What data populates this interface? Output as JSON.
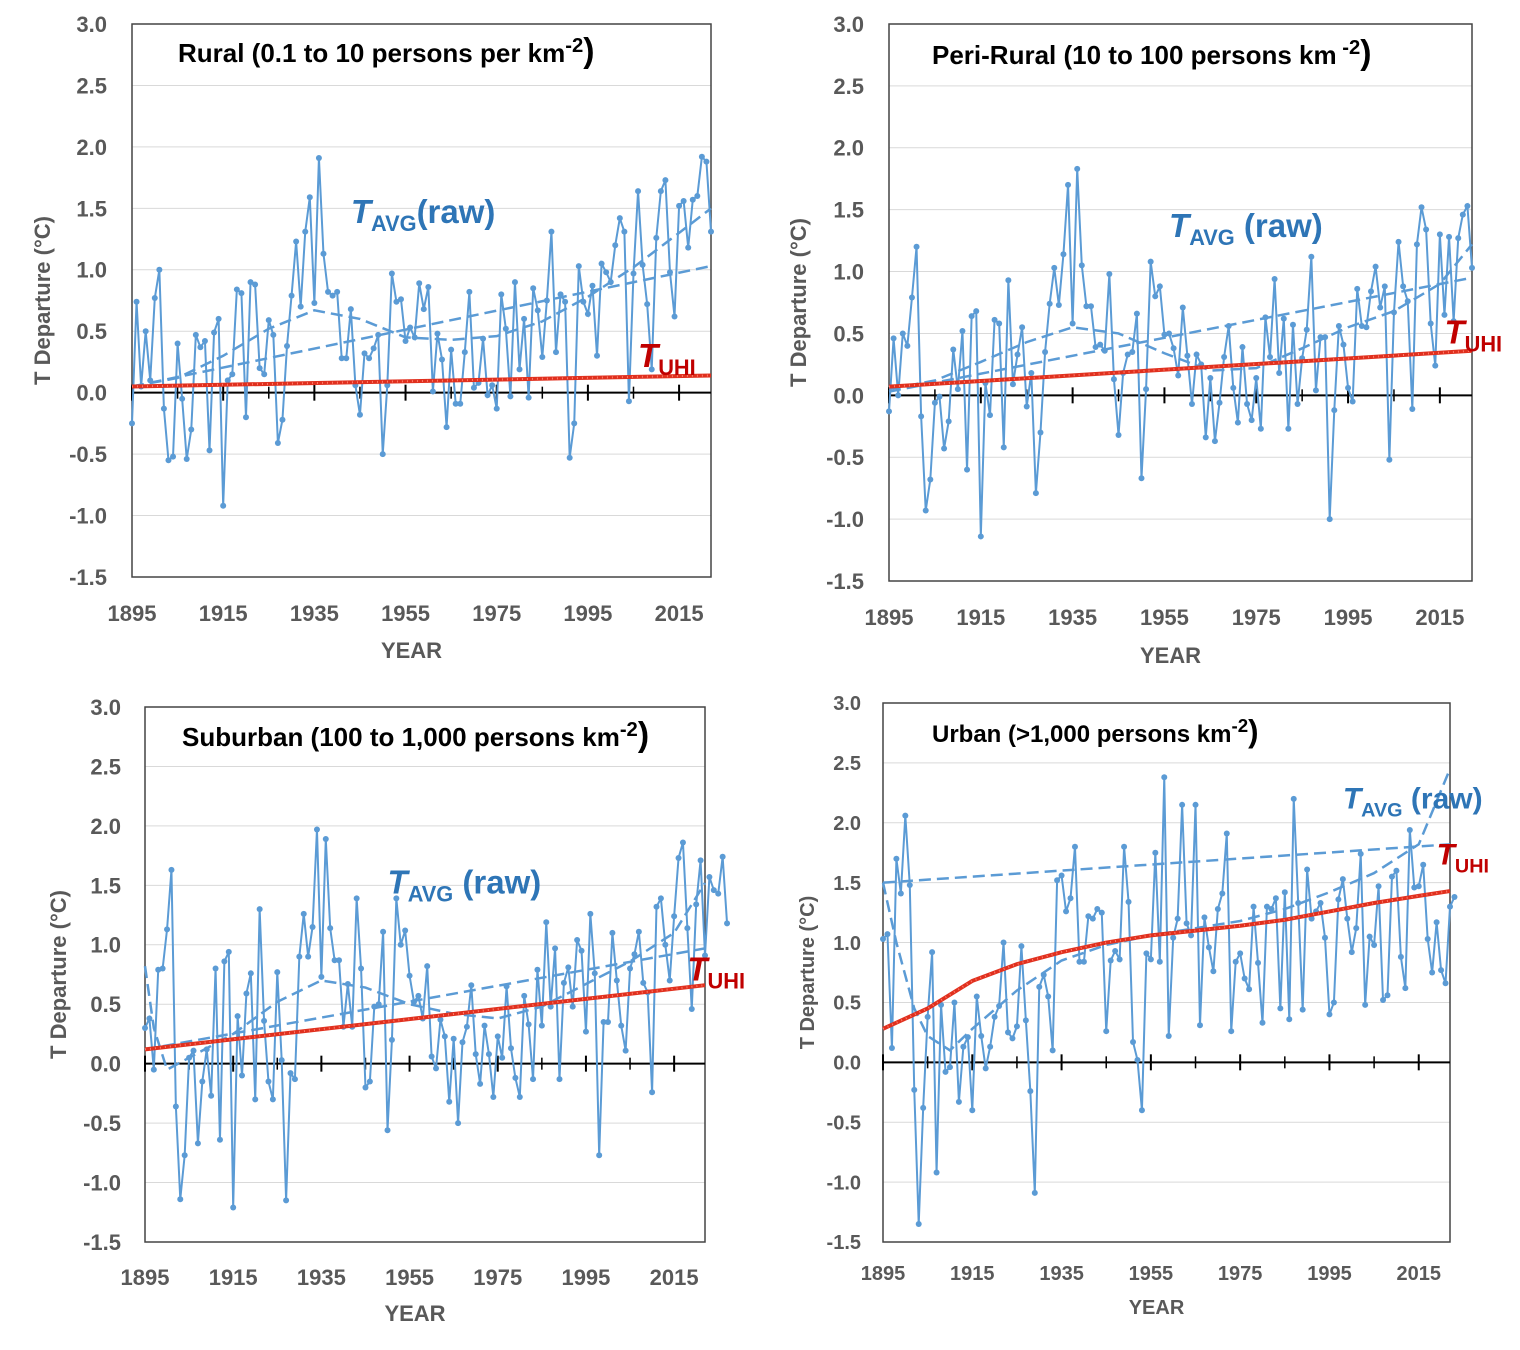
{
  "figure": {
    "series_labels": {
      "raw_main": "T",
      "raw_sub": "AVG",
      "raw_suffix": "(raw)",
      "uhi_main": "T",
      "uhi_sub": "UHI"
    },
    "colors": {
      "raw": "#5b9bd5",
      "uhi": "#e0301e",
      "trend": "#5b9bd5",
      "axis": "#000000",
      "grid": "#d9d9d9",
      "label_raw": "#2e75b6",
      "label_uhi": "#c00000",
      "tick_text": "#595959"
    }
  },
  "chart_data": [
    {
      "type": "line",
      "title": "Rural (0.1 to 10 persons per km",
      "title_sup": "-2",
      "title_end": ")",
      "xlabel": "YEAR",
      "ylabel": "T Departure (°C)",
      "xlim": [
        1895,
        2022
      ],
      "ylim": [
        -1.5,
        3.0
      ],
      "xticks": [
        "1895",
        "1915",
        "1935",
        "1955",
        "1975",
        "1995",
        "2015"
      ],
      "yticks": [
        "3.0",
        "2.5",
        "2.0",
        "1.5",
        "1.0",
        "0.5",
        "0.0",
        "-0.5",
        "-1.0",
        "-1.5"
      ],
      "grid": true,
      "series": [
        {
          "label": "TAVG (raw)",
          "x_start": 1895,
          "values": [
            -0.25,
            0.74,
            0.05,
            0.5,
            0.1,
            0.77,
            1.0,
            -0.13,
            -0.55,
            -0.52,
            0.4,
            -0.05,
            -0.54,
            -0.3,
            0.47,
            0.37,
            0.42,
            -0.47,
            0.49,
            0.6,
            -0.92,
            0.1,
            0.15,
            0.84,
            0.81,
            -0.2,
            0.9,
            0.88,
            0.2,
            0.15,
            0.59,
            0.47,
            -0.41,
            -0.22,
            0.38,
            0.79,
            1.23,
            0.7,
            1.31,
            1.59,
            0.73,
            1.91,
            1.13,
            0.82,
            0.79,
            0.82,
            0.28,
            0.28,
            0.68,
            0.06,
            -0.18,
            0.32,
            0.28,
            0.36,
            0.47,
            -0.5,
            0.06,
            0.97,
            0.74,
            0.76,
            0.42,
            0.53,
            0.45,
            0.89,
            0.68,
            0.86,
            0.01,
            0.48,
            0.27,
            -0.28,
            0.35,
            -0.09,
            -0.09,
            0.33,
            0.82,
            0.04,
            0.08,
            0.44,
            -0.02,
            0.06,
            -0.13,
            0.8,
            0.52,
            -0.03,
            0.9,
            0.19,
            0.6,
            -0.04,
            0.85,
            0.67,
            0.29,
            0.75,
            1.31,
            0.33,
            0.8,
            0.74,
            -0.53,
            -0.25,
            1.03,
            0.74,
            0.64,
            0.87,
            0.3,
            1.05,
            0.98,
            0.9,
            1.2,
            1.42,
            1.31,
            -0.07,
            0.97,
            1.64,
            1.04,
            0.72,
            0.19,
            1.26,
            1.64,
            1.73,
            0.98,
            0.62,
            1.52,
            1.56,
            1.18,
            1.57,
            1.6,
            1.92,
            1.88,
            1.31
          ]
        },
        {
          "label": "TUHI",
          "x": [
            1895,
            2022
          ],
          "values": [
            0.05,
            0.14
          ]
        }
      ],
      "trendlines": [
        {
          "x": [
            1895,
            2022
          ],
          "values": [
            0.05,
            1.03
          ]
        },
        {
          "x": [
            1895,
            1905,
            1915,
            1925,
            1935,
            1945,
            1955,
            1965,
            1975,
            1985,
            1995,
            2005,
            2015,
            2022
          ],
          "values": [
            0.05,
            0.12,
            0.3,
            0.52,
            0.67,
            0.6,
            0.45,
            0.43,
            0.46,
            0.58,
            0.78,
            1.02,
            1.3,
            1.5
          ]
        }
      ],
      "annotations": [
        {
          "text": "TAVG(raw)",
          "x": 1943,
          "y": 1.38
        },
        {
          "text": "TUHI",
          "x": 2006,
          "y": 0.21
        }
      ]
    },
    {
      "type": "line",
      "title": "Peri-Rural (10 to 100 persons km",
      "title_sup": " -2",
      "title_end": ")",
      "xlabel": "YEAR",
      "ylabel": "T Departure (°C)",
      "xlim": [
        1895,
        2022
      ],
      "ylim": [
        -1.5,
        3.0
      ],
      "xticks": [
        "1895",
        "1915",
        "1935",
        "1955",
        "1975",
        "1995",
        "2015"
      ],
      "yticks": [
        "3.0",
        "2.5",
        "2.0",
        "1.5",
        "1.0",
        "0.5",
        "0.0",
        "-0.5",
        "-1.0",
        "-1.5"
      ],
      "grid": true,
      "series": [
        {
          "label": "TAVG (raw)",
          "x_start": 1895,
          "values": [
            -0.13,
            0.46,
            0.0,
            0.5,
            0.4,
            0.79,
            1.2,
            -0.17,
            -0.93,
            -0.68,
            -0.06,
            -0.01,
            -0.43,
            -0.21,
            0.37,
            0.05,
            0.52,
            -0.6,
            0.64,
            0.68,
            -1.14,
            0.1,
            -0.16,
            0.61,
            0.58,
            -0.42,
            0.93,
            0.09,
            0.33,
            0.55,
            -0.09,
            0.18,
            -0.79,
            -0.3,
            0.35,
            0.74,
            1.03,
            0.73,
            1.14,
            1.7,
            0.58,
            1.83,
            1.05,
            0.72,
            0.72,
            0.39,
            0.41,
            0.36,
            0.98,
            0.13,
            -0.32,
            0.18,
            0.33,
            0.35,
            0.66,
            -0.67,
            0.05,
            1.08,
            0.8,
            0.88,
            0.49,
            0.5,
            0.38,
            0.16,
            0.71,
            0.32,
            -0.07,
            0.33,
            0.25,
            -0.34,
            0.14,
            -0.37,
            -0.06,
            0.31,
            0.56,
            0.06,
            -0.22,
            0.39,
            -0.07,
            -0.2,
            0.14,
            -0.27,
            0.63,
            0.31,
            0.94,
            0.18,
            0.62,
            -0.27,
            0.57,
            -0.07,
            0.3,
            0.53,
            1.12,
            0.04,
            0.47,
            0.47,
            -1.0,
            -0.12,
            0.56,
            0.41,
            0.06,
            -0.05,
            0.86,
            0.56,
            0.55,
            0.84,
            1.04,
            0.71,
            0.88,
            -0.52,
            0.67,
            1.24,
            0.88,
            0.76,
            -0.11,
            1.22,
            1.52,
            1.34,
            0.58,
            0.24,
            1.3,
            0.65,
            1.28,
            0.6,
            1.27,
            1.46,
            1.53,
            1.03
          ]
        },
        {
          "label": "TUHI",
          "x": [
            1895,
            2022
          ],
          "values": [
            0.07,
            0.36
          ]
        }
      ],
      "trendlines": [
        {
          "x": [
            1895,
            2022
          ],
          "values": [
            0.03,
            0.95
          ]
        },
        {
          "x": [
            1895,
            1905,
            1915,
            1925,
            1935,
            1945,
            1955,
            1965,
            1975,
            1985,
            1995,
            2005,
            2015,
            2022
          ],
          "values": [
            0.05,
            0.12,
            0.27,
            0.43,
            0.55,
            0.5,
            0.34,
            0.2,
            0.22,
            0.38,
            0.55,
            0.68,
            0.9,
            1.22
          ]
        }
      ],
      "annotations": [
        {
          "text": "TAVG (raw)",
          "x": 1956,
          "y": 1.28
        },
        {
          "text": "TUHI",
          "x": 2016,
          "y": 0.42
        }
      ]
    },
    {
      "type": "line",
      "title": "Suburban (100 to 1,000 persons km",
      "title_sup": "-2",
      "title_end": ")",
      "xlabel": "YEAR",
      "ylabel": "T Departure (°C)",
      "xlim": [
        1895,
        2022
      ],
      "ylim": [
        -1.5,
        3.0
      ],
      "xticks": [
        "1895",
        "1915",
        "1935",
        "1955",
        "1975",
        "1995",
        "2015"
      ],
      "yticks": [
        "3.0",
        "2.5",
        "2.0",
        "1.5",
        "1.0",
        "0.5",
        "0.0",
        "-0.5",
        "-1.0",
        "-1.5"
      ],
      "grid": true,
      "series": [
        {
          "label": "TAVG (raw)",
          "x_start": 1895,
          "values": [
            0.3,
            0.38,
            -0.05,
            0.79,
            0.8,
            1.13,
            1.63,
            -0.36,
            -1.14,
            -0.77,
            0.05,
            0.11,
            -0.67,
            -0.15,
            0.12,
            -0.27,
            0.8,
            -0.64,
            0.86,
            0.94,
            -1.21,
            0.4,
            -0.1,
            0.59,
            0.76,
            -0.3,
            1.3,
            0.36,
            -0.15,
            -0.3,
            0.77,
            0.03,
            -1.15,
            -0.08,
            -0.13,
            0.9,
            1.26,
            0.9,
            1.15,
            1.97,
            0.73,
            1.89,
            1.14,
            0.87,
            0.87,
            0.31,
            0.67,
            0.31,
            1.39,
            0.8,
            -0.2,
            -0.15,
            0.48,
            0.5,
            1.11,
            -0.56,
            0.2,
            1.39,
            1.0,
            1.12,
            0.74,
            0.52,
            0.57,
            0.38,
            0.82,
            0.06,
            -0.04,
            0.37,
            0.23,
            -0.32,
            0.21,
            -0.5,
            0.18,
            0.31,
            0.66,
            0.08,
            -0.17,
            0.32,
            0.08,
            -0.28,
            0.23,
            0.05,
            0.65,
            0.13,
            -0.12,
            -0.28,
            0.57,
            0.33,
            -0.13,
            0.79,
            0.32,
            1.19,
            0.48,
            0.97,
            -0.13,
            0.68,
            0.81,
            0.48,
            1.04,
            0.95,
            0.27,
            1.26,
            0.76,
            -0.77,
            0.35,
            0.35,
            1.1,
            0.7,
            0.32,
            0.11,
            0.8,
            0.92,
            1.11,
            0.68,
            0.6,
            -0.24,
            1.32,
            1.39,
            1.0,
            0.7,
            1.24,
            1.73,
            1.86,
            1.14,
            0.46,
            1.34,
            1.71,
            0.91,
            1.57,
            1.46,
            1.43,
            1.74,
            1.18
          ]
        },
        {
          "label": "TUHI",
          "x": [
            1895,
            2022
          ],
          "values": [
            0.12,
            0.66
          ]
        }
      ],
      "trendlines": [
        {
          "x": [
            1895,
            2022
          ],
          "values": [
            0.12,
            0.97
          ]
        },
        {
          "x": [
            1895,
            1897,
            1900,
            1905,
            1915,
            1925,
            1935,
            1945,
            1955,
            1965,
            1975,
            1985,
            1995,
            2005,
            2015,
            2022
          ],
          "values": [
            0.82,
            0.3,
            -0.05,
            0.05,
            0.25,
            0.52,
            0.7,
            0.64,
            0.5,
            0.42,
            0.38,
            0.48,
            0.67,
            0.86,
            1.1,
            1.52
          ]
        }
      ],
      "annotations": [
        {
          "text": "TAVG (raw)",
          "x": 1950,
          "y": 1.43
        },
        {
          "text": "TUHI",
          "x": 2018,
          "y": 0.7
        }
      ]
    },
    {
      "type": "line",
      "title": "Urban (>1,000 persons km",
      "title_sup": "-2",
      "title_end": ")",
      "xlabel": "YEAR",
      "ylabel": "T Departure (°C)",
      "xlim": [
        1895,
        2022
      ],
      "ylim": [
        -1.5,
        3.0
      ],
      "xticks": [
        "1895",
        "1915",
        "1935",
        "1955",
        "1975",
        "1995",
        "2015"
      ],
      "yticks": [
        "3.0",
        "2.5",
        "2.0",
        "1.5",
        "1.0",
        "0.5",
        "0.0",
        "-0.5",
        "-1.0",
        "-1.5"
      ],
      "grid": true,
      "series": [
        {
          "label": "TAVG (raw)",
          "x_start": 1895,
          "values": [
            1.03,
            1.07,
            0.12,
            1.7,
            1.41,
            2.06,
            1.48,
            -0.23,
            -1.35,
            -0.38,
            0.38,
            0.92,
            -0.92,
            0.48,
            -0.08,
            -0.04,
            0.5,
            -0.33,
            0.13,
            0.21,
            -0.4,
            0.55,
            0.22,
            -0.05,
            0.13,
            0.38,
            0.47,
            1.0,
            0.25,
            0.2,
            0.3,
            0.97,
            0.35,
            -0.24,
            -1.09,
            0.63,
            0.73,
            0.55,
            0.1,
            1.52,
            1.56,
            1.26,
            1.37,
            1.8,
            0.84,
            0.84,
            1.22,
            1.2,
            1.28,
            1.25,
            0.26,
            0.85,
            0.93,
            0.86,
            1.8,
            1.34,
            0.17,
            0.02,
            -0.4,
            0.91,
            0.86,
            1.75,
            0.84,
            2.38,
            0.22,
            1.04,
            1.2,
            2.15,
            1.16,
            1.06,
            2.15,
            0.31,
            1.21,
            0.96,
            0.76,
            1.28,
            1.41,
            1.91,
            0.26,
            0.84,
            0.91,
            0.7,
            0.61,
            1.3,
            0.83,
            0.33,
            1.3,
            1.28,
            1.37,
            0.45,
            1.42,
            0.36,
            2.2,
            1.33,
            0.44,
            1.61,
            1.2,
            1.26,
            1.33,
            1.04,
            0.4,
            0.5,
            1.36,
            1.53,
            1.2,
            0.92,
            1.12,
            1.74,
            0.48,
            1.05,
            0.98,
            1.47,
            0.52,
            0.56,
            1.55,
            1.6,
            0.88,
            0.62,
            1.94,
            1.46,
            1.47,
            1.65,
            1.03,
            0.75,
            1.17,
            0.77,
            0.66,
            1.3,
            1.38
          ]
        },
        {
          "label": "TUHI",
          "x": [
            1895,
            1905,
            1915,
            1925,
            1935,
            1945,
            1955,
            1965,
            1975,
            1985,
            1995,
            2005,
            2015,
            2022
          ],
          "values": [
            0.28,
            0.45,
            0.68,
            0.82,
            0.92,
            1.0,
            1.06,
            1.1,
            1.14,
            1.19,
            1.26,
            1.33,
            1.39,
            1.43
          ]
        }
      ],
      "trendlines": [
        {
          "x": [
            1895,
            2022
          ],
          "values": [
            1.5,
            1.82
          ]
        },
        {
          "x": [
            1895,
            1898,
            1902,
            1905,
            1910,
            1915,
            1925,
            1935,
            1945,
            1955,
            1965,
            1975,
            1985,
            1995,
            2005,
            2015,
            2022
          ],
          "values": [
            1.5,
            1.0,
            0.45,
            0.22,
            0.1,
            0.28,
            0.6,
            0.85,
            0.98,
            1.06,
            1.12,
            1.18,
            1.28,
            1.42,
            1.58,
            1.82,
            2.45
          ]
        }
      ],
      "annotations": [
        {
          "text": "TAVG (raw)",
          "x": 1998,
          "y": 2.12
        },
        {
          "text": "TUHI",
          "x": 2019,
          "y": 1.65
        }
      ]
    }
  ]
}
